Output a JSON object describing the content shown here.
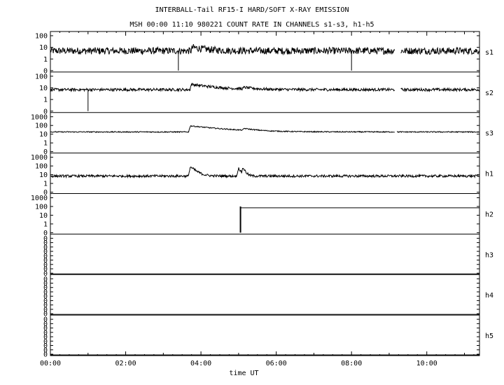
{
  "header": {
    "title": "INTERBALL-Tail RF15-I HARD/SOFT X-RAY EMISSION",
    "subtitle": "MSH 00:00 11:10 980221  COUNT RATE IN CHANNELS s1-s3, h1-h5"
  },
  "chart_data": {
    "type": "line",
    "xlabel": "time UT",
    "x_ticks": [
      "00:00",
      "02:00",
      "04:00",
      "06:00",
      "08:00",
      "10:00"
    ],
    "xlim_hours": [
      0,
      11.4
    ],
    "y_scale": "log",
    "panels": [
      {
        "name": "s1",
        "y_ticks": [
          "100",
          "10",
          "1",
          "0"
        ],
        "baseline": 5,
        "noise": 0.3,
        "gaps": [
          [
            9.15,
            9.3
          ]
        ],
        "dropouts": [
          3.4,
          8.0
        ],
        "features": [
          {
            "t": 3.78,
            "peak": 10,
            "decay": 0.35
          }
        ],
        "step": null
      },
      {
        "name": "s2",
        "y_ticks": [
          "100",
          "10",
          "1",
          "0"
        ],
        "baseline": 7,
        "noise": 0.12,
        "gaps": [
          [
            9.15,
            9.3
          ]
        ],
        "dropouts": [
          1.0
        ],
        "features": [
          {
            "t": 3.75,
            "peak": 20,
            "decay": 0.6
          },
          {
            "t": 5.15,
            "peak": 10,
            "decay": 0.25
          }
        ],
        "step": null
      },
      {
        "name": "s3",
        "y_ticks": [
          "1000",
          "100",
          "10",
          "1",
          "0"
        ],
        "baseline": 18,
        "noise": 0.06,
        "gaps": [
          [
            9.15,
            9.2
          ]
        ],
        "dropouts": [],
        "features": [
          {
            "t": 3.72,
            "peak": 90,
            "decay": 0.75
          },
          {
            "t": 5.15,
            "peak": 35,
            "decay": 0.3
          }
        ],
        "step": null
      },
      {
        "name": "h1",
        "y_ticks": [
          "1000",
          "100",
          "10",
          "1",
          "0"
        ],
        "baseline": 7,
        "noise": 0.14,
        "gaps": [],
        "dropouts": [],
        "features": [
          {
            "t": 3.72,
            "peak": 80,
            "decay": 0.12
          },
          {
            "t": 5.0,
            "peak": 60,
            "decay": 0.05
          },
          {
            "t": 5.12,
            "peak": 60,
            "decay": 0.05
          }
        ],
        "step": null
      },
      {
        "name": "h2",
        "y_ticks": [
          "1000",
          "100",
          "10",
          "1",
          "0"
        ],
        "baseline": 0,
        "noise": 0,
        "gaps": [],
        "dropouts": [],
        "features": [],
        "step": {
          "t": 5.05,
          "value": 70,
          "spike": 100
        }
      },
      {
        "name": "h3",
        "y_ticks": [
          "0",
          "0",
          "0",
          "0",
          "0",
          "0",
          "0",
          "0",
          "0"
        ],
        "baseline": 0,
        "noise": 0,
        "gaps": [],
        "dropouts": [],
        "features": [],
        "step": null
      },
      {
        "name": "h4",
        "y_ticks": [
          "0",
          "0",
          "0",
          "0",
          "0",
          "0",
          "0",
          "0",
          "0"
        ],
        "baseline": 0,
        "noise": 0,
        "gaps": [],
        "dropouts": [],
        "features": [],
        "step": null
      },
      {
        "name": "h5",
        "y_ticks": [
          "0",
          "0",
          "0",
          "0",
          "0",
          "0",
          "0",
          "0",
          "0"
        ],
        "baseline": 0,
        "noise": 0,
        "gaps": [],
        "dropouts": [],
        "features": [],
        "step": null
      }
    ]
  }
}
